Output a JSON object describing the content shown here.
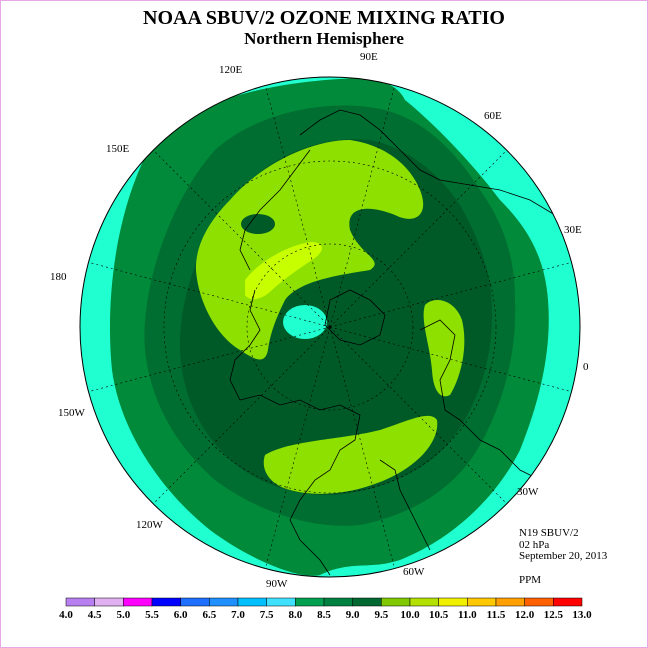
{
  "title": "NOAA SBUV/2 OZONE MIXING RATIO",
  "subtitle": "Northern Hemisphere",
  "info": {
    "satellite": "N19 SBUV/2",
    "level": "02 hPa",
    "date": "September 20, 2013",
    "units": "PPM"
  },
  "longitude_labels": [
    "90E",
    "60E",
    "30E",
    "0",
    "30W",
    "60W",
    "90W",
    "120W",
    "150W",
    "180",
    "150E",
    "120E"
  ],
  "colorbar": {
    "ticks": [
      "4.0",
      "4.5",
      "5.0",
      "5.5",
      "6.0",
      "6.5",
      "7.0",
      "7.5",
      "8.0",
      "8.5",
      "9.0",
      "9.5",
      "10.0",
      "10.5",
      "11.0",
      "11.5",
      "12.0",
      "12.5",
      "13.0"
    ],
    "colors": [
      "#b87ff0",
      "#e0b0f0",
      "#ff00ff",
      "#0000ff",
      "#1e6fff",
      "#1e90ff",
      "#00bfff",
      "#40e0ff",
      "#00a050",
      "#008040",
      "#006830",
      "#80c800",
      "#b4e000",
      "#f0f000",
      "#ffc800",
      "#ffa000",
      "#ff6000",
      "#ff0000",
      "#8b4513"
    ]
  },
  "map_colors": {
    "outer": "#20ffcf",
    "band_8_0": "#008a3a",
    "band_8_5": "#006e30",
    "band_9_0": "#005a28",
    "band_9_5": "#8ee000",
    "band_10_0": "#c8ff00"
  }
}
